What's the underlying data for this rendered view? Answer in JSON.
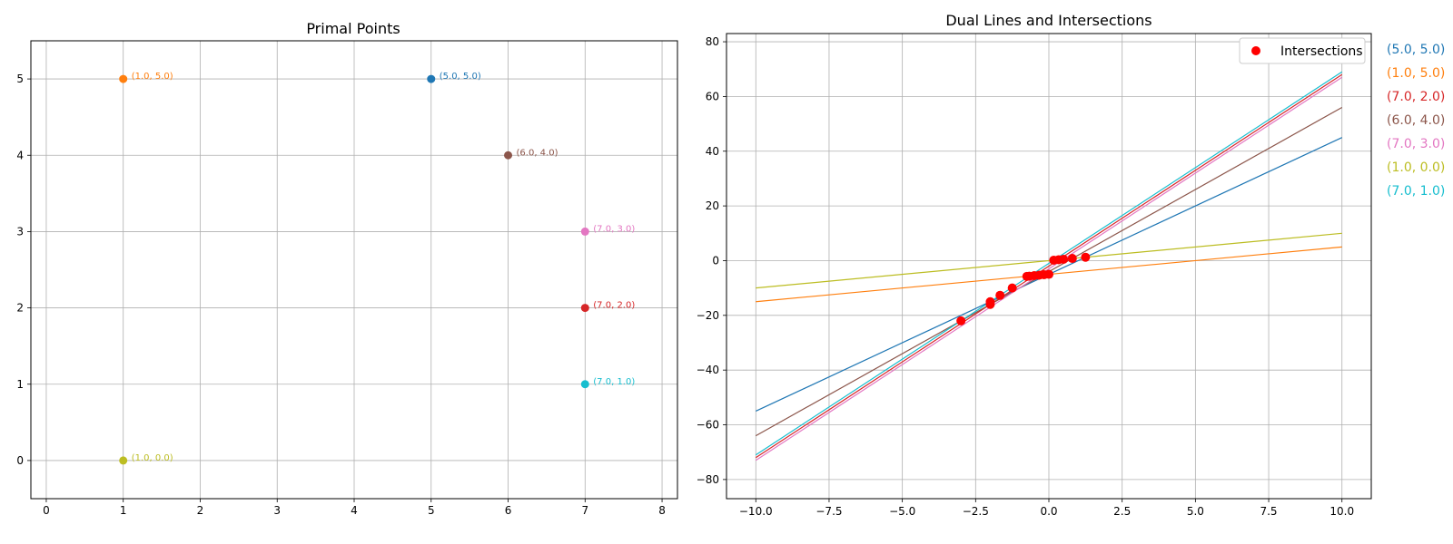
{
  "chart_data": [
    {
      "type": "scatter",
      "title": "Primal Points",
      "xlabel": "",
      "ylabel": "",
      "xlim": [
        -0.2,
        8.2
      ],
      "ylim": [
        -0.5,
        5.5
      ],
      "xticks": [
        0,
        1,
        2,
        3,
        4,
        5,
        6,
        7,
        8
      ],
      "yticks": [
        0,
        1,
        2,
        3,
        4,
        5
      ],
      "grid": true,
      "points": [
        {
          "x": 5,
          "y": 5,
          "label": "(5.0, 5.0)",
          "color": "#1f77b4"
        },
        {
          "x": 1,
          "y": 5,
          "label": "(1.0, 5.0)",
          "color": "#ff7f0e"
        },
        {
          "x": 7,
          "y": 2,
          "label": "(7.0, 2.0)",
          "color": "#d62728"
        },
        {
          "x": 6,
          "y": 4,
          "label": "(6.0, 4.0)",
          "color": "#8c564b"
        },
        {
          "x": 7,
          "y": 3,
          "label": "(7.0, 3.0)",
          "color": "#e377c2"
        },
        {
          "x": 1,
          "y": 0,
          "label": "(1.0, 0.0)",
          "color": "#bcbd22"
        },
        {
          "x": 7,
          "y": 1,
          "label": "(7.0, 1.0)",
          "color": "#17becf"
        }
      ]
    },
    {
      "type": "line",
      "title": "Dual Lines and Intersections",
      "xlabel": "",
      "ylabel": "",
      "xlim": [
        -11,
        11
      ],
      "ylim": [
        -87,
        83
      ],
      "xticks": [
        -10.0,
        -7.5,
        -5.0,
        -2.5,
        0.0,
        2.5,
        5.0,
        7.5,
        10.0
      ],
      "xtick_labels": [
        "−10.0",
        "−7.5",
        "−5.0",
        "−2.5",
        "0.0",
        "2.5",
        "5.0",
        "7.5",
        "10.0"
      ],
      "yticks": [
        -80,
        -60,
        -40,
        -20,
        0,
        20,
        40,
        60,
        80
      ],
      "ytick_labels": [
        "−80",
        "−60",
        "−40",
        "−20",
        "0",
        "20",
        "40",
        "60",
        "80"
      ],
      "grid": true,
      "x_range": [
        -10,
        10
      ],
      "series": [
        {
          "label": "(5.0, 5.0)",
          "slope": 5,
          "intercept": -5,
          "color": "#1f77b4"
        },
        {
          "label": "(1.0, 5.0)",
          "slope": 1,
          "intercept": -5,
          "color": "#ff7f0e"
        },
        {
          "label": "(7.0, 2.0)",
          "slope": 7,
          "intercept": -2,
          "color": "#d62728"
        },
        {
          "label": "(6.0, 4.0)",
          "slope": 6,
          "intercept": -4,
          "color": "#8c564b"
        },
        {
          "label": "(7.0, 3.0)",
          "slope": 7,
          "intercept": -3,
          "color": "#e377c2"
        },
        {
          "label": "(1.0, 0.0)",
          "slope": 1,
          "intercept": 0,
          "color": "#bcbd22"
        },
        {
          "label": "(7.0, 1.0)",
          "slope": 7,
          "intercept": -1,
          "color": "#17becf"
        }
      ],
      "intersections": {
        "name": "Intersections",
        "color": "#ff0000",
        "points": [
          {
            "x": -3.0,
            "y": -22.0
          },
          {
            "x": -2.0,
            "y": -15.0
          },
          {
            "x": -2.0,
            "y": -16.0
          },
          {
            "x": -1.6667,
            "y": -12.6667
          },
          {
            "x": -1.25,
            "y": -10.0
          },
          {
            "x": -0.75,
            "y": -5.75
          },
          {
            "x": -0.6667,
            "y": -5.6667
          },
          {
            "x": -0.5,
            "y": -5.5
          },
          {
            "x": -0.3333,
            "y": -5.3333
          },
          {
            "x": -0.1667,
            "y": -5.1667
          },
          {
            "x": 0.0,
            "y": -5.0
          },
          {
            "x": 0.1667,
            "y": 0.1667
          },
          {
            "x": 0.3333,
            "y": 0.3333
          },
          {
            "x": 0.5,
            "y": 0.5
          },
          {
            "x": 0.8,
            "y": 0.8
          },
          {
            "x": 1.25,
            "y": 1.25
          }
        ]
      },
      "legend": {
        "position": "upper-right",
        "entries": [
          "Intersections"
        ]
      },
      "side_labels": [
        "(5.0, 5.0)",
        "(1.0, 5.0)",
        "(7.0, 2.0)",
        "(6.0, 4.0)",
        "(7.0, 3.0)",
        "(1.0, 0.0)",
        "(7.0, 1.0)"
      ]
    }
  ]
}
